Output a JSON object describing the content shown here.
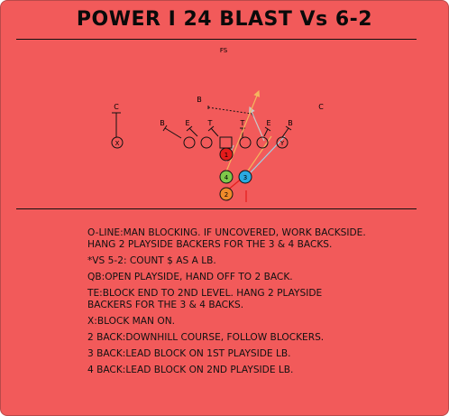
{
  "title": "POWER I 24 BLAST Vs 6-2",
  "colors": {
    "background": "#f25a5a",
    "qb": "#e31b1b",
    "back4": "#7ec84a",
    "back3": "#2aa9e0",
    "back2": "#f08a2a",
    "te_route": "#c9c9c9",
    "back3_route": "#9fd3e8",
    "back2_route": "#f4b65f"
  },
  "diagram": {
    "defense": {
      "fs": "FS",
      "c_left": "C",
      "c_right": "C",
      "b_top": "B",
      "b_left": "B",
      "e_left": "E",
      "t_left": "T",
      "t_right": "T",
      "e_right": "E",
      "b_right": "B"
    },
    "offense": {
      "x": "X",
      "y": "Y",
      "qb": "1",
      "back4": "4",
      "back3": "3",
      "back2": "2"
    }
  },
  "notes": [
    {
      "key": "O-LINE:",
      "text": "MAN BLOCKING. IF UNCOVERED, WORK BACKSIDE. HANG 2 PLAYSIDE BACKERS FOR THE 3 & 4 BACKS."
    },
    {
      "key": "*VS 5-2:",
      "text": " COUNT $ AS A LB."
    },
    {
      "key": "QB:",
      "text": "OPEN PLAYSIDE, HAND OFF TO 2 BACK."
    },
    {
      "key": "TE:",
      "text": "BLOCK END TO 2ND LEVEL. HANG 2 PLAYSIDE BACKERS FOR THE 3 & 4 BACKS."
    },
    {
      "key": "X:",
      "text": "BLOCK MAN ON."
    },
    {
      "key": "2 BACK:",
      "text": "DOWNHILL COURSE, FOLLOW BLOCKERS."
    },
    {
      "key": "3 BACK:",
      "text": "LEAD BLOCK ON 1ST PLAYSIDE LB."
    },
    {
      "key": "4 BACK:",
      "text": "LEAD BLOCK ON 2ND PLAYSIDE LB."
    }
  ]
}
